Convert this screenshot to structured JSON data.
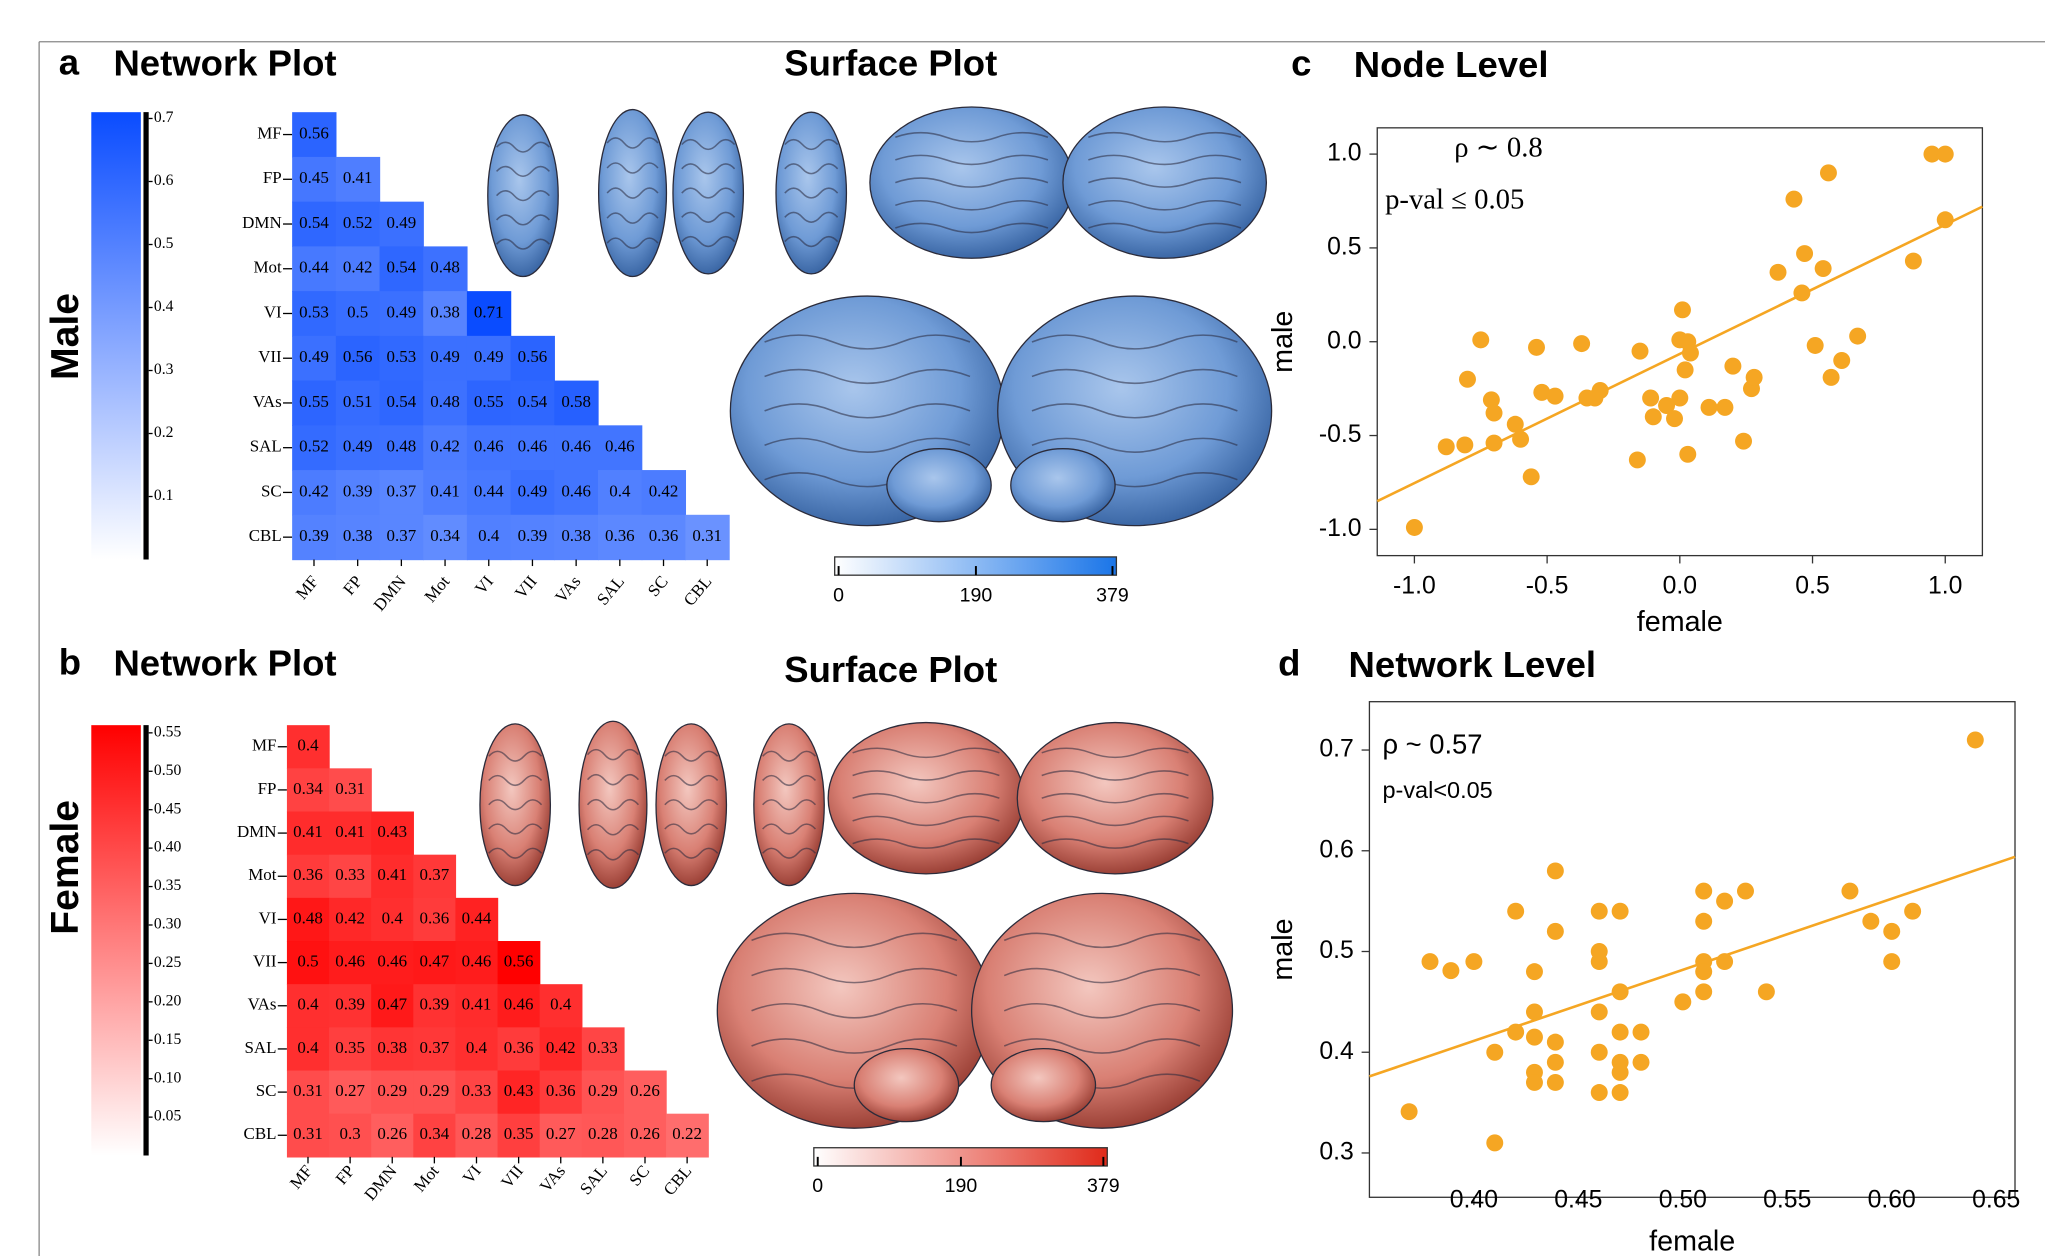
{
  "chart_data": [
    {
      "type": "heatmap",
      "panel": "a",
      "title": "Network Plot",
      "group": "Male",
      "color": "#0a4cff",
      "categories": [
        "MF",
        "FP",
        "DMN",
        "Mot",
        "VI",
        "VII",
        "VAs",
        "SAL",
        "SC",
        "CBL"
      ],
      "values": [
        [
          0.56
        ],
        [
          0.45,
          0.41
        ],
        [
          0.54,
          0.52,
          0.49
        ],
        [
          0.44,
          0.42,
          0.54,
          0.48
        ],
        [
          0.53,
          0.5,
          0.49,
          0.38,
          0.71
        ],
        [
          0.49,
          0.56,
          0.53,
          0.49,
          0.49,
          0.56
        ],
        [
          0.55,
          0.51,
          0.54,
          0.48,
          0.55,
          0.54,
          0.58
        ],
        [
          0.52,
          0.49,
          0.48,
          0.42,
          0.46,
          0.46,
          0.46,
          0.46
        ],
        [
          0.42,
          0.39,
          0.37,
          0.41,
          0.44,
          0.49,
          0.46,
          0.4,
          0.42
        ],
        [
          0.39,
          0.38,
          0.37,
          0.34,
          0.4,
          0.39,
          0.38,
          0.36,
          0.36,
          0.31
        ]
      ],
      "clim": [
        0,
        0.71
      ],
      "cticks": [
        0.1,
        0.2,
        0.3,
        0.4,
        0.5,
        0.6,
        0.7
      ]
    },
    {
      "type": "colorbar",
      "title": "Surface Plot",
      "colors": [
        "#ffffff",
        "#1a75e8"
      ],
      "xlim": [
        0,
        379
      ],
      "xticks": [
        0,
        190,
        379
      ]
    },
    {
      "type": "heatmap",
      "panel": "b",
      "title": "Network Plot",
      "group": "Female",
      "color": "#ff0000",
      "categories": [
        "MF",
        "FP",
        "DMN",
        "Mot",
        "VI",
        "VII",
        "VAs",
        "SAL",
        "SC",
        "CBL"
      ],
      "values": [
        [
          0.4
        ],
        [
          0.34,
          0.31
        ],
        [
          0.41,
          0.41,
          0.43
        ],
        [
          0.36,
          0.33,
          0.41,
          0.37
        ],
        [
          0.48,
          0.42,
          0.4,
          0.36,
          0.44
        ],
        [
          0.5,
          0.46,
          0.46,
          0.47,
          0.46,
          0.56
        ],
        [
          0.4,
          0.39,
          0.47,
          0.39,
          0.41,
          0.46,
          0.4
        ],
        [
          0.4,
          0.35,
          0.38,
          0.37,
          0.4,
          0.36,
          0.42,
          0.33
        ],
        [
          0.31,
          0.27,
          0.29,
          0.29,
          0.33,
          0.43,
          0.36,
          0.29,
          0.26
        ],
        [
          0.31,
          0.3,
          0.26,
          0.34,
          0.28,
          0.35,
          0.27,
          0.28,
          0.26,
          0.22
        ]
      ],
      "clim": [
        0,
        0.56
      ],
      "cticks": [
        0.05,
        {
          "value": 0.1,
          "label": "0.10"
        },
        0.15,
        {
          "value": 0.2,
          "label": "0.20"
        },
        0.25,
        {
          "value": 0.3,
          "label": "0.30"
        },
        0.35,
        {
          "value": 0.4,
          "label": "0.40"
        },
        0.45,
        {
          "value": 0.5,
          "label": "0.50"
        },
        0.55
      ]
    },
    {
      "type": "colorbar",
      "title": "Surface Plot",
      "colors": [
        "#ffffff",
        "#e02a1a"
      ],
      "xlim": [
        0,
        379
      ],
      "xticks": [
        0,
        190,
        379
      ]
    },
    {
      "type": "scatter",
      "panel": "c",
      "title": "Node Level",
      "xlabel": "female",
      "ylabel": "male",
      "color": "#f5a623",
      "annotations": [
        "ρ ∼ 0.8",
        "p-val ≤ 0.05"
      ],
      "x": [
        -1.0,
        -0.88,
        -0.81,
        -0.8,
        -0.75,
        -0.71,
        -0.7,
        -0.7,
        -0.62,
        -0.6,
        -0.56,
        -0.54,
        -0.52,
        -0.47,
        -0.37,
        -0.35,
        -0.32,
        -0.3,
        -0.16,
        -0.15,
        -0.11,
        -0.1,
        -0.05,
        -0.02,
        0.0,
        0.0,
        0.01,
        0.03,
        0.04,
        0.02,
        0.03,
        0.11,
        0.17,
        0.2,
        0.24,
        0.27,
        0.28,
        0.37,
        0.43,
        0.46,
        0.47,
        0.51,
        0.54,
        0.56,
        0.57,
        0.61,
        0.67,
        0.88,
        0.95,
        1.0,
        1.0
      ],
      "values": [
        -0.99,
        -0.56,
        -0.55,
        -0.2,
        0.01,
        -0.31,
        -0.38,
        -0.54,
        -0.44,
        -0.52,
        -0.72,
        -0.03,
        -0.27,
        -0.29,
        -0.01,
        -0.3,
        -0.3,
        -0.26,
        -0.63,
        -0.05,
        -0.3,
        -0.4,
        -0.34,
        -0.41,
        -0.3,
        0.01,
        0.17,
        0.0,
        -0.06,
        -0.15,
        -0.6,
        -0.35,
        -0.35,
        -0.13,
        -0.53,
        -0.25,
        -0.19,
        0.37,
        0.76,
        0.26,
        0.47,
        -0.02,
        0.39,
        0.9,
        -0.19,
        -0.1,
        0.03,
        0.43,
        1.0,
        1.0,
        0.65
      ],
      "fit": {
        "x": [
          -1.14,
          1.14
        ],
        "values": [
          -0.85,
          0.72
        ]
      },
      "xlim": [
        -1.14,
        1.14
      ],
      "ylim": [
        -1.14,
        1.14
      ],
      "xticks": [
        {
          "value": -1,
          "label": "-1.0"
        },
        -0.5,
        {
          "value": 0,
          "label": "0.0"
        },
        0.5,
        {
          "value": 1,
          "label": "1.0"
        }
      ],
      "yticks": [
        {
          "value": -1,
          "label": "-1.0"
        },
        -0.5,
        {
          "value": 0,
          "label": "0.0"
        },
        0.5,
        {
          "value": 1,
          "label": "1.0"
        }
      ]
    },
    {
      "type": "scatter",
      "panel": "d",
      "title": "Network Level",
      "xlabel": "female",
      "ylabel": "male",
      "color": "#f5a623",
      "annotations": [
        "ρ ~ 0.57",
        "p-val<0.05"
      ],
      "x": [
        0.369,
        0.379,
        0.389,
        0.4,
        0.41,
        0.41,
        0.42,
        0.42,
        0.429,
        0.429,
        0.429,
        0.429,
        0.429,
        0.439,
        0.439,
        0.439,
        0.439,
        0.439,
        0.46,
        0.46,
        0.46,
        0.46,
        0.46,
        0.46,
        0.47,
        0.47,
        0.47,
        0.47,
        0.47,
        0.47,
        0.48,
        0.48,
        0.5,
        0.51,
        0.51,
        0.51,
        0.51,
        0.51,
        0.52,
        0.52,
        0.53,
        0.54,
        0.58,
        0.59,
        0.6,
        0.6,
        0.61,
        0.64
      ],
      "values": [
        0.341,
        0.49,
        0.481,
        0.49,
        0.4,
        0.31,
        0.54,
        0.42,
        0.48,
        0.44,
        0.415,
        0.38,
        0.37,
        0.58,
        0.52,
        0.41,
        0.39,
        0.37,
        0.54,
        0.5,
        0.49,
        0.44,
        0.4,
        0.36,
        0.54,
        0.46,
        0.42,
        0.39,
        0.38,
        0.36,
        0.42,
        0.39,
        0.45,
        0.56,
        0.53,
        0.49,
        0.48,
        0.46,
        0.55,
        0.49,
        0.56,
        0.46,
        0.56,
        0.53,
        0.52,
        0.49,
        0.54,
        0.71
      ],
      "fit": {
        "x": [
          0.35,
          0.659
        ],
        "values": [
          0.376,
          0.594
        ]
      },
      "xlim": [
        0.35,
        0.659
      ],
      "ylim": [
        0.256,
        0.748
      ],
      "xticks": [
        {
          "value": 0.4,
          "label": "0.40"
        },
        0.45,
        {
          "value": 0.5,
          "label": "0.50"
        },
        0.55,
        {
          "value": 0.6,
          "label": "0.60"
        },
        0.65
      ],
      "yticks": [
        0.3,
        0.4,
        0.5,
        0.6,
        0.7
      ]
    }
  ]
}
